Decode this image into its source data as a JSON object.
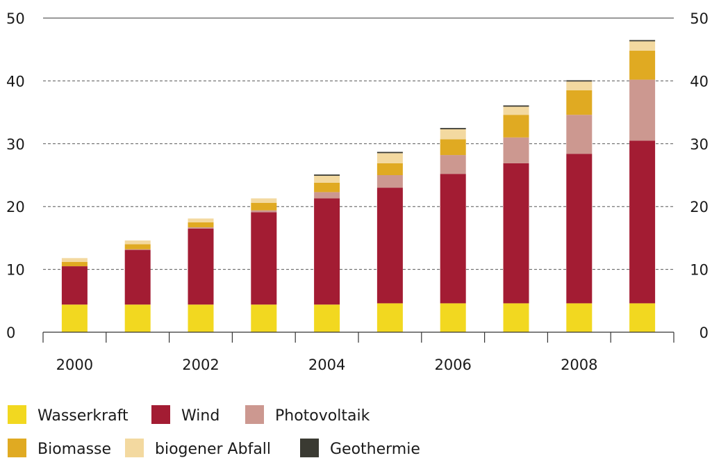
{
  "chart_data": {
    "type": "bar",
    "stacked": true,
    "categories": [
      "2000",
      "2001",
      "2002",
      "2003",
      "2004",
      "2005",
      "2006",
      "2007",
      "2008",
      "2009"
    ],
    "x_tick_labels": [
      "2000",
      "",
      "2002",
      "",
      "2004",
      "",
      "2006",
      "",
      "2008",
      ""
    ],
    "ylim": [
      0,
      50
    ],
    "yticks": [
      0,
      10,
      20,
      30,
      40,
      50
    ],
    "y_axis_both_sides": true,
    "grid": "horizontal-dashed",
    "legend_placement": "bottom",
    "series": [
      {
        "name": "Wasserkraft",
        "color": "#f2d820",
        "values": [
          4.4,
          4.4,
          4.4,
          4.4,
          4.4,
          4.6,
          4.6,
          4.6,
          4.6,
          4.6
        ]
      },
      {
        "name": "Wind",
        "color": "#a31c33",
        "values": [
          6.1,
          8.7,
          12.1,
          14.7,
          16.9,
          18.4,
          20.6,
          22.3,
          23.8,
          25.9
        ]
      },
      {
        "name": "Photovoltaik",
        "color": "#cc9890",
        "values": [
          0.0,
          0.1,
          0.2,
          0.3,
          1.0,
          2.0,
          3.0,
          4.1,
          6.2,
          9.7
        ]
      },
      {
        "name": "Biomasse",
        "color": "#e0aa22",
        "values": [
          0.7,
          0.8,
          0.8,
          1.2,
          1.5,
          1.9,
          2.5,
          3.6,
          3.9,
          4.6
        ]
      },
      {
        "name": "biogener Abfall",
        "color": "#f3d9a0",
        "values": [
          0.6,
          0.6,
          0.6,
          0.7,
          1.1,
          1.6,
          1.6,
          1.3,
          1.4,
          1.5
        ]
      },
      {
        "name": "Geothermie",
        "color": "#3a3a32",
        "values": [
          0.0,
          0.0,
          0.0,
          0.0,
          0.2,
          0.2,
          0.2,
          0.2,
          0.2,
          0.2
        ]
      }
    ],
    "legend_rows": [
      [
        "Wasserkraft",
        "Wind",
        "Photovoltaik"
      ],
      [
        "Biomasse",
        "biogener Abfall",
        "Geothermie"
      ]
    ]
  }
}
